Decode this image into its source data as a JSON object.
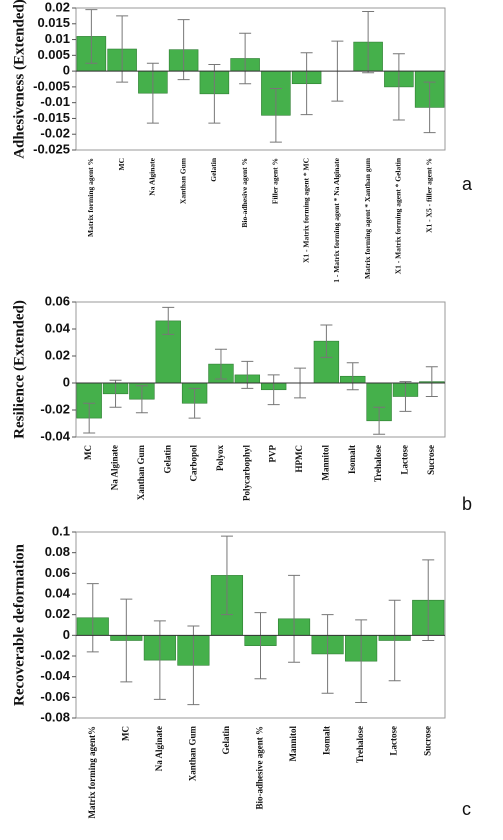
{
  "chart_data": [
    {
      "type": "bar",
      "panel_label": "a",
      "ylabel": "Adhesiveness (Extended)",
      "color": "#45b04b",
      "categories": [
        "Matrix forming agent %",
        "MC",
        "Na Alginate",
        "Xanthan Gum",
        "Gelatin",
        "Bio-adhesive agent %",
        "Filler agent %",
        "X1 - Matrix forming agent * MC",
        "1 - Matrix forming agent * Na Alginate",
        "Matrix forming agent * Xanthan gum",
        "X1 - Matrix forming agent * Gelatin",
        "X1 - X5 - filler agent %"
      ],
      "values": [
        0.011,
        0.007,
        -0.007,
        0.0068,
        -0.0072,
        0.004,
        -0.014,
        -0.004,
        0,
        0.0092,
        -0.005,
        -0.0115
      ],
      "errors": [
        0.0085,
        0.0105,
        0.0095,
        0.0095,
        0.0093,
        0.008,
        0.0085,
        0.0098,
        0.0095,
        0.0097,
        0.0105,
        0.008
      ],
      "ylim": [
        -0.025,
        0.02
      ],
      "yticks": [
        -0.025,
        -0.02,
        -0.015,
        -0.01,
        -0.005,
        0,
        0.005,
        0.01,
        0.015,
        0.02
      ]
    },
    {
      "type": "bar",
      "panel_label": "b",
      "ylabel": "Resilience (Extended)",
      "color": "#45b04b",
      "categories": [
        "MC",
        "Na Alginate",
        "Xanthan Gum",
        "Gelatin",
        "Carbopol",
        "Polyox",
        "Polycarbophyl",
        "PVP",
        "HPMC",
        "Mannitol",
        "Isomalt",
        "Trehalose",
        "Lactose",
        "Sucrose"
      ],
      "values": [
        -0.026,
        -0.008,
        -0.012,
        0.046,
        -0.015,
        0.014,
        0.006,
        -0.005,
        0,
        0.031,
        0.005,
        -0.028,
        -0.01,
        0.001
      ],
      "errors": [
        0.011,
        0.01,
        0.01,
        0.01,
        0.011,
        0.011,
        0.01,
        0.011,
        0.011,
        0.012,
        0.01,
        0.01,
        0.011,
        0.011
      ],
      "ylim": [
        -0.04,
        0.06
      ],
      "yticks": [
        -0.04,
        -0.02,
        0,
        0.02,
        0.04,
        0.06
      ]
    },
    {
      "type": "bar",
      "panel_label": "c",
      "ylabel": "Recoverable deformation",
      "color": "#45b04b",
      "categories": [
        "Matrix forming agent%",
        "MC",
        "Na Alginate",
        "Xanthan Gum",
        "Gelatin",
        "Bio-adhesive agent %",
        "Mannitol",
        "Isomalt",
        "Trehalose",
        "Lactose",
        "Sucrose"
      ],
      "values": [
        0.017,
        -0.005,
        -0.024,
        -0.029,
        0.058,
        -0.01,
        0.016,
        -0.018,
        -0.025,
        -0.005,
        0.034
      ],
      "errors": [
        0.033,
        0.04,
        0.038,
        0.038,
        0.038,
        0.032,
        0.042,
        0.038,
        0.04,
        0.039,
        0.039
      ],
      "ylim": [
        -0.08,
        0.1
      ],
      "yticks": [
        -0.08,
        -0.06,
        -0.04,
        -0.02,
        0,
        0.02,
        0.04,
        0.06,
        0.08,
        0.1
      ]
    }
  ]
}
